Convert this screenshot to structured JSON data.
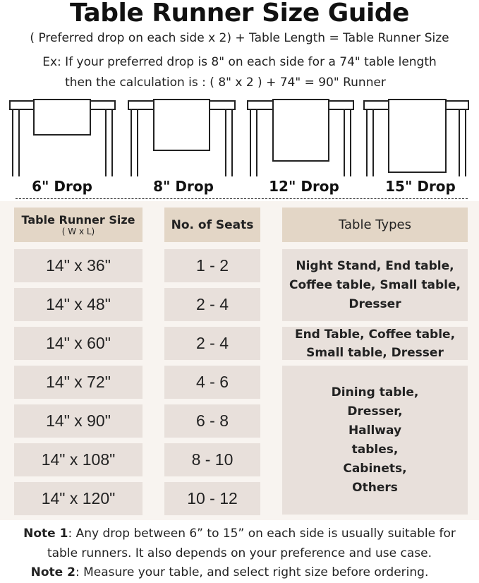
{
  "title": "Table Runner Size Guide",
  "formula": "( Preferred drop on each side x 2) + Table Length = Table Runner Size",
  "example_line1": "Ex: If your preferred drop is 8\" on each side for a 74\" table length",
  "example_line2": "then the calculation is : ( 8\" x 2 ) + 74\" = 90\" Runner",
  "drops": [
    "6\" Drop",
    "8\" Drop",
    "12\" Drop",
    "15\" Drop"
  ],
  "headers": {
    "size": "Table Runner Size",
    "size_sub": "( W x L)",
    "seats": "No. of Seats",
    "types": "Table Types"
  },
  "rows": [
    {
      "size": "14\" x 36\"",
      "seats": "1 - 2"
    },
    {
      "size": "14\" x 48\"",
      "seats": "2 - 4"
    },
    {
      "size": "14\" x 60\"",
      "seats": "2 - 4"
    },
    {
      "size": "14\" x 72\"",
      "seats": "4 - 6"
    },
    {
      "size": "14\" x 90\"",
      "seats": "6 - 8"
    },
    {
      "size": "14\" x 108\"",
      "seats": "8 - 10"
    },
    {
      "size": "14\" x 120\"",
      "seats": "10 - 12"
    }
  ],
  "table_types": [
    "Night Stand, End table, Coffee table, Small table, Dresser",
    "End Table, Coffee table, Small table, Dresser",
    "Dining table, Dresser, Hallway tables, Cabinets, Others"
  ],
  "notes": {
    "note1_label": "Note 1",
    "note1_text": ": Any drop between 6” to 15” on each side is usually suitable for",
    "note1_text2": "table runners. It also depends on your preference and use case.",
    "note2_label": "Note 2",
    "note2_text": ": Measure your table, and select right size before ordering."
  },
  "colors": {
    "header_cell": "#e3d6c6",
    "body_cell": "#e8e0db",
    "panel": "#f8f4f0"
  }
}
